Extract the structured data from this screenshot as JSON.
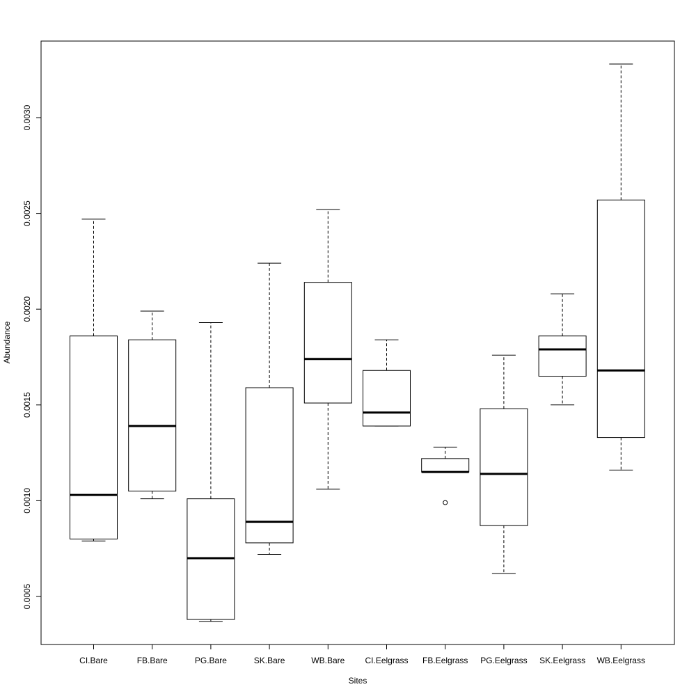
{
  "chart_data": {
    "type": "boxplot",
    "title": "",
    "xlabel": "Sites",
    "ylabel": "Abundance",
    "ylim": [
      0.0003,
      0.0033
    ],
    "y_ticks": [
      0.0005,
      0.001,
      0.0015,
      0.002,
      0.0025,
      0.003
    ],
    "y_tick_labels": [
      "0.0005",
      "0.0010",
      "0.0015",
      "0.0020",
      "0.0025",
      "0.0030"
    ],
    "grid": false,
    "categories": [
      "CI.Bare",
      "FB.Bare",
      "PG.Bare",
      "SK.Bare",
      "WB.Bare",
      "CI.Eelgrass",
      "FB.Eelgrass",
      "PG.Eelgrass",
      "SK.Eelgrass",
      "WB.Eelgrass"
    ],
    "boxes": [
      {
        "whisker_low": 0.00079,
        "q1": 0.0008,
        "median": 0.00103,
        "q3": 0.00186,
        "whisker_high": 0.00247,
        "outliers": []
      },
      {
        "whisker_low": 0.00101,
        "q1": 0.00105,
        "median": 0.00139,
        "q3": 0.00184,
        "whisker_high": 0.00199,
        "outliers": []
      },
      {
        "whisker_low": 0.00037,
        "q1": 0.00038,
        "median": 0.0007,
        "q3": 0.00101,
        "whisker_high": 0.00193,
        "outliers": []
      },
      {
        "whisker_low": 0.00072,
        "q1": 0.00078,
        "median": 0.00089,
        "q3": 0.00159,
        "whisker_high": 0.00224,
        "outliers": []
      },
      {
        "whisker_low": 0.00106,
        "q1": 0.00151,
        "median": 0.00174,
        "q3": 0.00214,
        "whisker_high": 0.00252,
        "outliers": []
      },
      {
        "whisker_low": 0.00139,
        "q1": 0.00139,
        "median": 0.00146,
        "q3": 0.00168,
        "whisker_high": 0.00184,
        "outliers": []
      },
      {
        "whisker_low": 0.00115,
        "q1": 0.00115,
        "median": 0.00115,
        "q3": 0.00122,
        "whisker_high": 0.00128,
        "outliers": [
          0.00099
        ]
      },
      {
        "whisker_low": 0.00062,
        "q1": 0.00087,
        "median": 0.00114,
        "q3": 0.00148,
        "whisker_high": 0.00176,
        "outliers": []
      },
      {
        "whisker_low": 0.0015,
        "q1": 0.00165,
        "median": 0.00179,
        "q3": 0.00186,
        "whisker_high": 0.00208,
        "outliers": []
      },
      {
        "whisker_low": 0.00116,
        "q1": 0.00133,
        "median": 0.00168,
        "q3": 0.00257,
        "whisker_high": 0.00328,
        "outliers": []
      }
    ]
  }
}
